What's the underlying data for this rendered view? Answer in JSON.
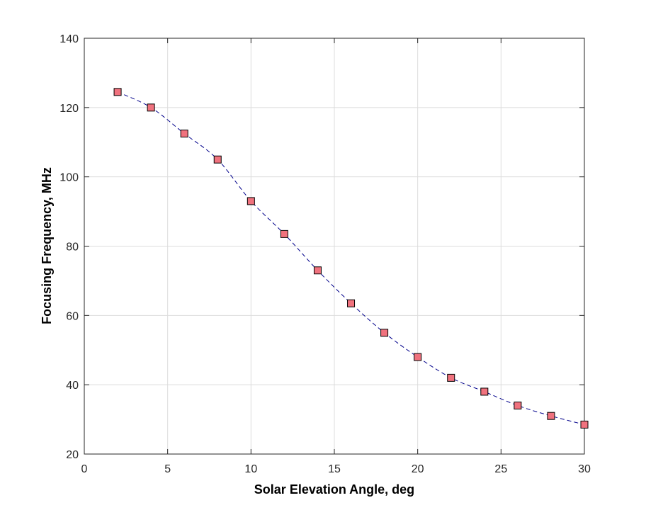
{
  "chart_data": {
    "type": "line",
    "title": "",
    "xlabel": "Solar Elevation Angle, deg",
    "ylabel": "Focusing Frequency, MHz",
    "xlim": [
      0,
      30
    ],
    "ylim": [
      20,
      140
    ],
    "x_ticks": [
      "0",
      "5",
      "10",
      "15",
      "20",
      "25",
      "30"
    ],
    "y_ticks": [
      "20",
      "40",
      "60",
      "80",
      "100",
      "120",
      "140"
    ],
    "grid": true,
    "legend": "none",
    "series": [
      {
        "x": [
          2,
          4,
          6,
          8,
          10,
          12,
          14,
          16,
          18,
          20,
          22,
          24,
          26,
          28,
          30
        ],
        "y": [
          124.5,
          120,
          112.5,
          105,
          93,
          83.5,
          73,
          63.5,
          55,
          48,
          42,
          38,
          34,
          31,
          28.5
        ],
        "line_color": "#00008b",
        "line_style": "dashed",
        "marker": "square",
        "marker_color": "#f0727e"
      }
    ]
  }
}
